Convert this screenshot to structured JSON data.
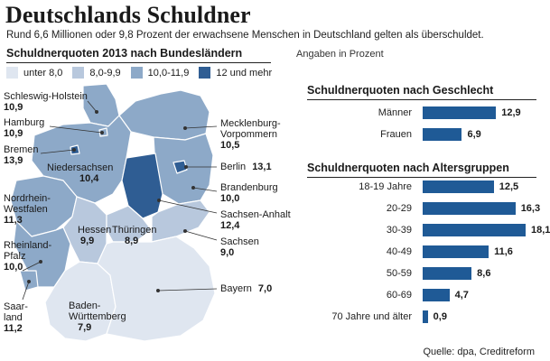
{
  "header": {
    "title": "Deutschlands Schuldner",
    "subtitle": "Rund 6,6 Millionen oder 9,8 Prozent der erwachsene Menschen in Deutschland gelten als überschuldet."
  },
  "map": {
    "heading": "Schuldnerquoten 2013 nach Bundesländern",
    "unit_note": "Angaben in Prozent",
    "legend": [
      {
        "label": "unter 8,0",
        "color": "#dfe6f0"
      },
      {
        "label": "8,0-9,9",
        "color": "#b8c8dd"
      },
      {
        "label": "10,0-11,9",
        "color": "#8da9c8"
      },
      {
        "label": "12 und mehr",
        "color": "#2f5d93"
      }
    ],
    "states": [
      {
        "name": "Schleswig-Holstein",
        "value": "10,9"
      },
      {
        "name": "Hamburg",
        "value": "10,9"
      },
      {
        "name": "Bremen",
        "value": "13,9"
      },
      {
        "name": "Niedersachsen",
        "value": "10,4"
      },
      {
        "name": "Nordrhein-Westfalen",
        "value": "11,3"
      },
      {
        "name": "Rheinland-Pfalz",
        "value": "10,0"
      },
      {
        "name": "Saarland",
        "value": "11,2"
      },
      {
        "name": "Hessen",
        "value": "9,9"
      },
      {
        "name": "Thüringen",
        "value": "8,9"
      },
      {
        "name": "Baden-Württemberg",
        "value": "7,9"
      },
      {
        "name": "Bayern",
        "value": "7,0"
      },
      {
        "name": "Sachsen",
        "value": "9,0"
      },
      {
        "name": "Sachsen-Anhalt",
        "value": "12,4"
      },
      {
        "name": "Brandenburg",
        "value": "10,0"
      },
      {
        "name": "Berlin",
        "value": "13,1"
      },
      {
        "name": "Mecklenburg-Vorpommern",
        "value": "10,5"
      }
    ],
    "label_lines": {
      "schleswig": "Schleswig-Holstein",
      "nrw_1": "Nordrhein-",
      "nrw_2": "Westfalen",
      "rp_1": "Rheinland-",
      "rp_2": "Pfalz",
      "saar_1": "Saar-",
      "saar_2": "land",
      "bw_1": "Baden-",
      "bw_2": "Württemberg",
      "mv_1": "Mecklenburg-",
      "mv_2": "Vorpommern"
    }
  },
  "chart_data": [
    {
      "type": "bar",
      "title": "Schuldnerquoten nach Geschlecht",
      "categories": [
        "Männer",
        "Frauen"
      ],
      "values": [
        12.9,
        6.9
      ],
      "value_labels": [
        "12,9",
        "6,9"
      ],
      "orientation": "horizontal",
      "color": "#1f5a96"
    },
    {
      "type": "bar",
      "title": "Schuldnerquoten nach Altersgruppen",
      "categories": [
        "18-19 Jahre",
        "20-29",
        "30-39",
        "40-49",
        "50-59",
        "60-69",
        "70 Jahre und älter"
      ],
      "values": [
        12.5,
        16.3,
        18.1,
        11.6,
        8.6,
        4.7,
        0.9
      ],
      "value_labels": [
        "12,5",
        "16,3",
        "18,1",
        "11,6",
        "8,6",
        "4,7",
        "0,9"
      ],
      "orientation": "horizontal",
      "color": "#1f5a96"
    }
  ],
  "source": "Quelle: dpa, Creditreform"
}
